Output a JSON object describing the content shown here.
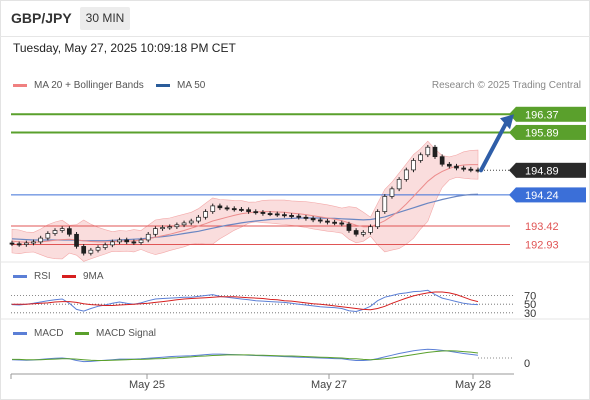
{
  "header": {
    "symbol": "GBP/JPY",
    "timeframe": "30 MIN"
  },
  "datetime": "Tuesday, May 27, 2025 10:09:18 PM CET",
  "legend_main": [
    {
      "label": "MA 20 + Bollinger Bands",
      "color": "#f08080"
    },
    {
      "label": "MA 50",
      "color": "#2a5c9a"
    }
  ],
  "copyright": "Research © 2025 Trading Central",
  "legend_rsi": [
    {
      "label": "RSI",
      "color": "#5b7fd6"
    },
    {
      "label": "9MA",
      "color": "#d61f1f"
    }
  ],
  "legend_macd": [
    {
      "label": "MACD",
      "color": "#5b7fd6"
    },
    {
      "label": "MACD Signal",
      "color": "#5aa02c"
    }
  ],
  "chart_data": {
    "type": "candlestick",
    "x_ticks": [
      "May 25",
      "May 27",
      "May 28"
    ],
    "price_ylim": [
      192.6,
      196.8
    ],
    "levels": [
      {
        "label": "196.37",
        "value": 196.37,
        "kind": "resistance",
        "color": "#5aa02c"
      },
      {
        "label": "195.89",
        "value": 195.89,
        "kind": "resistance",
        "color": "#5aa02c"
      },
      {
        "label": "194.89",
        "value": 194.89,
        "kind": "last_price",
        "color": "#222222"
      },
      {
        "label": "194.24",
        "value": 194.24,
        "kind": "pivot",
        "color": "#3b6fd8"
      },
      {
        "label": "193.42",
        "value": 193.42,
        "kind": "support",
        "color": "#e05555"
      },
      {
        "label": "192.93",
        "value": 192.93,
        "kind": "support",
        "color": "#e05555"
      }
    ],
    "forecast_arrow": {
      "from": 194.89,
      "to": 196.37
    },
    "close": [
      192.95,
      192.93,
      192.97,
      193.0,
      193.1,
      193.22,
      193.3,
      193.35,
      193.2,
      192.88,
      192.7,
      192.78,
      192.85,
      192.92,
      193.0,
      193.05,
      193.0,
      192.98,
      193.05,
      193.2,
      193.35,
      193.38,
      193.4,
      193.45,
      193.5,
      193.55,
      193.65,
      193.8,
      193.95,
      193.9,
      193.88,
      193.86,
      193.85,
      193.8,
      193.78,
      193.75,
      193.74,
      193.72,
      193.7,
      193.68,
      193.65,
      193.62,
      193.58,
      193.55,
      193.52,
      193.5,
      193.47,
      193.3,
      193.2,
      193.25,
      193.4,
      193.8,
      194.2,
      194.4,
      194.65,
      194.9,
      195.15,
      195.3,
      195.5,
      195.25,
      195.05,
      195.0,
      194.95,
      194.92,
      194.9,
      194.89
    ],
    "ma20": [
      193.02,
      193.0,
      192.99,
      192.99,
      193.0,
      193.02,
      193.04,
      193.06,
      193.07,
      193.05,
      193.03,
      193.01,
      193.0,
      193.0,
      193.01,
      193.02,
      193.02,
      193.03,
      193.05,
      193.08,
      193.12,
      193.16,
      193.2,
      193.25,
      193.3,
      193.36,
      193.42,
      193.48,
      193.55,
      193.6,
      193.65,
      193.7,
      193.74,
      193.77,
      193.79,
      193.8,
      193.8,
      193.79,
      193.78,
      193.76,
      193.74,
      193.72,
      193.69,
      193.66,
      193.63,
      193.6,
      193.56,
      193.5,
      193.44,
      193.4,
      193.4,
      193.47,
      193.56,
      193.68,
      193.82,
      194.0,
      194.2,
      194.4,
      194.6,
      194.75,
      194.86,
      194.94,
      195.0,
      195.03,
      195.04,
      195.04
    ],
    "ma50": [
      193.08,
      193.07,
      193.06,
      193.05,
      193.05,
      193.05,
      193.05,
      193.05,
      193.05,
      193.04,
      193.03,
      193.03,
      193.03,
      193.03,
      193.04,
      193.05,
      193.06,
      193.07,
      193.08,
      193.1,
      193.12,
      193.14,
      193.16,
      193.19,
      193.22,
      193.25,
      193.28,
      193.32,
      193.36,
      193.4,
      193.44,
      193.47,
      193.5,
      193.53,
      193.55,
      193.57,
      193.59,
      193.6,
      193.61,
      193.62,
      193.63,
      193.63,
      193.63,
      193.63,
      193.62,
      193.62,
      193.61,
      193.6,
      193.59,
      193.58,
      193.59,
      193.62,
      193.66,
      193.72,
      193.78,
      193.84,
      193.9,
      193.96,
      194.02,
      194.07,
      194.12,
      194.16,
      194.2,
      194.23,
      194.25,
      194.26
    ],
    "rsi_levels": [
      70,
      50,
      30
    ],
    "rsi": [
      49,
      48,
      50,
      52,
      55,
      58,
      60,
      62,
      52,
      38,
      34,
      40,
      45,
      48,
      52,
      55,
      52,
      50,
      53,
      58,
      62,
      63,
      64,
      65,
      66,
      66,
      68,
      70,
      72,
      68,
      66,
      64,
      62,
      60,
      58,
      57,
      56,
      55,
      54,
      52,
      50,
      48,
      46,
      44,
      43,
      42,
      40,
      35,
      33,
      38,
      45,
      58,
      66,
      70,
      74,
      76,
      79,
      80,
      82,
      72,
      64,
      60,
      56,
      52,
      50,
      49
    ],
    "rsi_ma": [
      50,
      50,
      50,
      51,
      52,
      53,
      55,
      56,
      56,
      54,
      51,
      49,
      48,
      47,
      47,
      48,
      49,
      50,
      51,
      52,
      54,
      56,
      58,
      60,
      62,
      63,
      64,
      65,
      66,
      67,
      67,
      67,
      66,
      65,
      64,
      63,
      61,
      60,
      58,
      57,
      55,
      53,
      51,
      50,
      48,
      46,
      44,
      42,
      40,
      38,
      37,
      40,
      45,
      52,
      58,
      64,
      69,
      73,
      76,
      78,
      78,
      76,
      72,
      66,
      60,
      56
    ],
    "macd_zero": 0,
    "macd": [
      -0.06,
      -0.07,
      -0.08,
      -0.07,
      -0.05,
      -0.03,
      -0.01,
      0.0,
      -0.03,
      -0.09,
      -0.13,
      -0.12,
      -0.1,
      -0.08,
      -0.06,
      -0.04,
      -0.04,
      -0.04,
      -0.03,
      -0.01,
      0.01,
      0.03,
      0.05,
      0.06,
      0.07,
      0.08,
      0.1,
      0.12,
      0.14,
      0.14,
      0.13,
      0.12,
      0.11,
      0.1,
      0.09,
      0.08,
      0.07,
      0.06,
      0.05,
      0.04,
      0.03,
      0.02,
      0.01,
      0.0,
      -0.01,
      -0.02,
      -0.03,
      -0.06,
      -0.09,
      -0.09,
      -0.07,
      -0.02,
      0.04,
      0.1,
      0.16,
      0.21,
      0.26,
      0.29,
      0.31,
      0.3,
      0.27,
      0.24,
      0.2,
      0.16,
      0.13,
      0.1
    ],
    "macd_signal": [
      -0.05,
      -0.05,
      -0.06,
      -0.06,
      -0.06,
      -0.05,
      -0.04,
      -0.03,
      -0.03,
      -0.04,
      -0.06,
      -0.08,
      -0.09,
      -0.09,
      -0.08,
      -0.07,
      -0.06,
      -0.05,
      -0.05,
      -0.04,
      -0.03,
      -0.02,
      0.0,
      0.01,
      0.03,
      0.04,
      0.06,
      0.07,
      0.09,
      0.1,
      0.11,
      0.11,
      0.11,
      0.11,
      0.1,
      0.1,
      0.09,
      0.08,
      0.07,
      0.07,
      0.06,
      0.05,
      0.04,
      0.03,
      0.02,
      0.01,
      0.0,
      -0.02,
      -0.03,
      -0.05,
      -0.06,
      -0.05,
      -0.03,
      0.0,
      0.04,
      0.08,
      0.12,
      0.16,
      0.2,
      0.23,
      0.25,
      0.26,
      0.25,
      0.23,
      0.21,
      0.18
    ]
  }
}
